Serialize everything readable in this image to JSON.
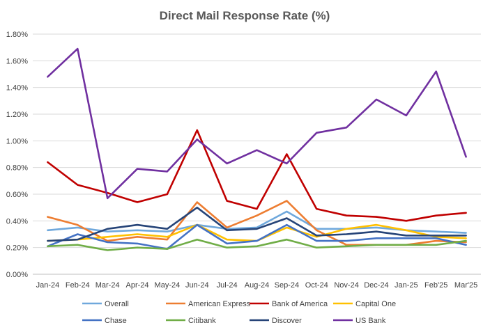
{
  "chart_data": {
    "type": "line",
    "title": "Direct Mail Response Rate (%)",
    "xlabel": "",
    "ylabel": "",
    "categories": [
      "Jan-24",
      "Feb-24",
      "Mar-24",
      "Apr-24",
      "May-24",
      "Jun-24",
      "Jul-24",
      "Aug-24",
      "Sep-24",
      "Oct-24",
      "Nov-24",
      "Dec-24",
      "Jan-25",
      "Feb'25",
      "Mar'25"
    ],
    "ylim": [
      0,
      1.8
    ],
    "yticks": [
      "0.00%",
      "0.20%",
      "0.40%",
      "0.60%",
      "0.80%",
      "1.00%",
      "1.20%",
      "1.40%",
      "1.60%",
      "1.80%"
    ],
    "grid": true,
    "legend_position": "bottom",
    "series": [
      {
        "name": "Overall",
        "color": "#6fa8dc",
        "values": [
          0.33,
          0.35,
          0.32,
          0.33,
          0.32,
          0.37,
          0.34,
          0.35,
          0.47,
          0.34,
          0.34,
          0.35,
          0.33,
          0.32,
          0.31
        ]
      },
      {
        "name": "American Express",
        "color": "#ed7d31",
        "values": [
          0.43,
          0.37,
          0.25,
          0.28,
          0.26,
          0.54,
          0.35,
          0.44,
          0.55,
          0.33,
          0.22,
          0.22,
          0.22,
          0.25,
          0.24
        ]
      },
      {
        "name": "Bank of America",
        "color": "#c00000",
        "values": [
          0.84,
          0.67,
          0.61,
          0.54,
          0.6,
          1.08,
          0.55,
          0.49,
          0.9,
          0.49,
          0.44,
          0.43,
          0.4,
          0.44,
          0.46
        ]
      },
      {
        "name": "Capital One",
        "color": "#ffc000",
        "values": [
          0.25,
          0.26,
          0.28,
          0.3,
          0.28,
          0.37,
          0.26,
          0.25,
          0.35,
          0.28,
          0.34,
          0.37,
          0.33,
          0.28,
          0.27
        ]
      },
      {
        "name": "Chase",
        "color": "#4472c4",
        "values": [
          0.21,
          0.3,
          0.24,
          0.23,
          0.19,
          0.37,
          0.23,
          0.25,
          0.37,
          0.25,
          0.25,
          0.27,
          0.27,
          0.27,
          0.22
        ]
      },
      {
        "name": "Citibank",
        "color": "#70ad47",
        "values": [
          0.21,
          0.22,
          0.18,
          0.2,
          0.19,
          0.26,
          0.2,
          0.21,
          0.26,
          0.2,
          0.21,
          0.22,
          0.22,
          0.22,
          0.25
        ]
      },
      {
        "name": "Discover",
        "color": "#264478",
        "values": [
          0.25,
          0.26,
          0.34,
          0.37,
          0.34,
          0.5,
          0.33,
          0.34,
          0.42,
          0.29,
          0.3,
          0.32,
          0.29,
          0.29,
          0.29
        ]
      },
      {
        "name": "US Bank",
        "color": "#7030a0",
        "values": [
          1.48,
          1.69,
          0.57,
          0.79,
          0.77,
          1.01,
          0.83,
          0.93,
          0.83,
          1.06,
          1.1,
          1.31,
          1.19,
          1.52,
          0.88
        ]
      }
    ]
  }
}
